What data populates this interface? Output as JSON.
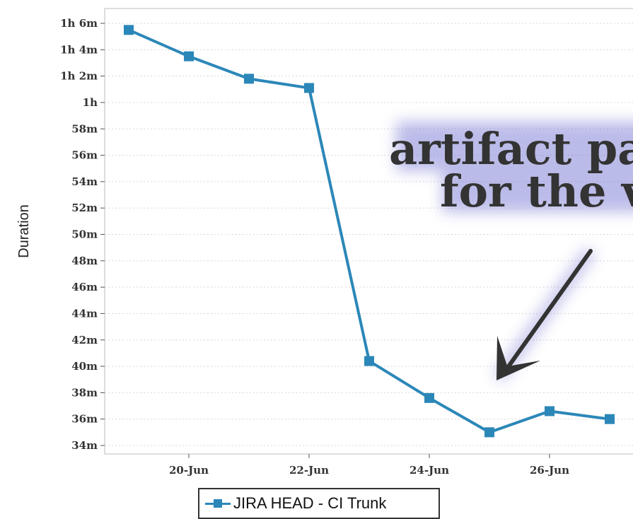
{
  "chart_data": {
    "type": "line",
    "ylabel": "Duration",
    "x_ticks": [
      "20-Jun",
      "22-Jun",
      "24-Jun",
      "26-Jun"
    ],
    "y_ticks": [
      "34m",
      "36m",
      "38m",
      "40m",
      "42m",
      "44m",
      "46m",
      "48m",
      "50m",
      "52m",
      "54m",
      "56m",
      "58m",
      "1h",
      "1h 2m",
      "1h 4m",
      "1h 6m"
    ],
    "ylim_minutes": [
      34,
      66
    ],
    "grid": true,
    "legend": "bottom-center",
    "series": [
      {
        "name": "JIRA HEAD - CI Trunk",
        "color": "#2b87b8",
        "x": [
          "19-Jun",
          "20-Jun",
          "21-Jun",
          "22-Jun",
          "23-Jun",
          "24-Jun",
          "25-Jun",
          "26-Jun",
          "27-Jun"
        ],
        "y_minutes": [
          65.5,
          63.5,
          61.8,
          61.1,
          40.4,
          37.6,
          35.0,
          36.6,
          36.0
        ]
      }
    ],
    "annotations": [
      "artifact pa",
      "for the v"
    ]
  }
}
